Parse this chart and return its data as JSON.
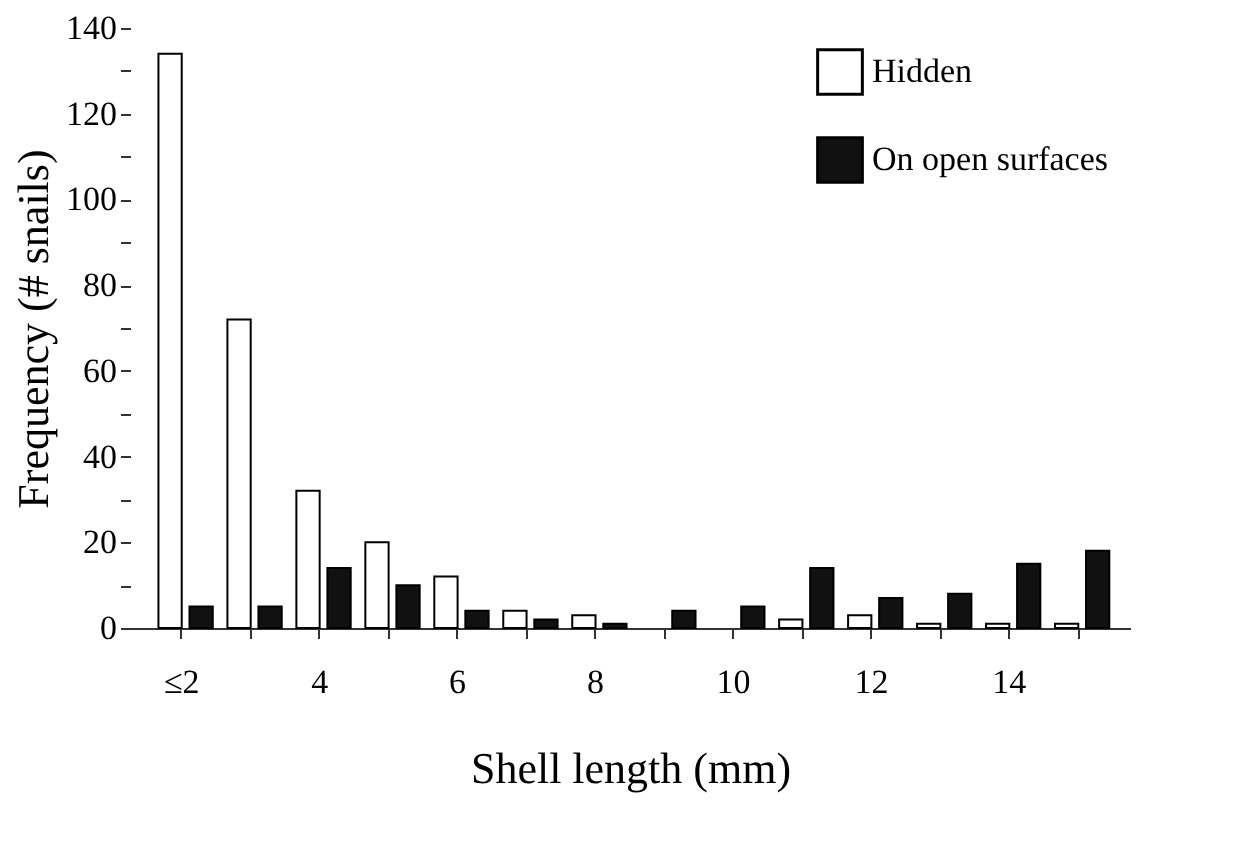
{
  "chart_data": {
    "type": "bar",
    "xlabel": "Shell length  (mm)",
    "ylabel": "Frequency (# snails)",
    "categories": [
      "≤2",
      null,
      "4",
      null,
      "6",
      null,
      "8",
      null,
      "10",
      null,
      "12",
      null,
      "14",
      null
    ],
    "series": [
      {
        "name": "Hidden",
        "color": "#ffffff",
        "values": [
          134,
          72,
          32,
          20,
          12,
          4,
          3,
          0,
          0,
          2,
          3,
          1,
          1,
          1
        ]
      },
      {
        "name": "On open surfaces",
        "color": "#111111",
        "values": [
          5,
          5,
          14,
          10,
          4,
          2,
          1,
          4,
          5,
          14,
          7,
          8,
          15,
          18
        ]
      }
    ],
    "ylim": [
      0,
      140
    ],
    "yticks": [
      0,
      {
        "value": 10,
        "label": null
      },
      20,
      {
        "value": 30,
        "label": null
      },
      40,
      {
        "value": 50,
        "label": null
      },
      60,
      {
        "value": 70,
        "label": null
      },
      80,
      {
        "value": 90,
        "label": null
      },
      100,
      {
        "value": 110,
        "label": null
      },
      120,
      {
        "value": 130,
        "label": null
      },
      140
    ],
    "grid": false,
    "legend": "top right"
  }
}
